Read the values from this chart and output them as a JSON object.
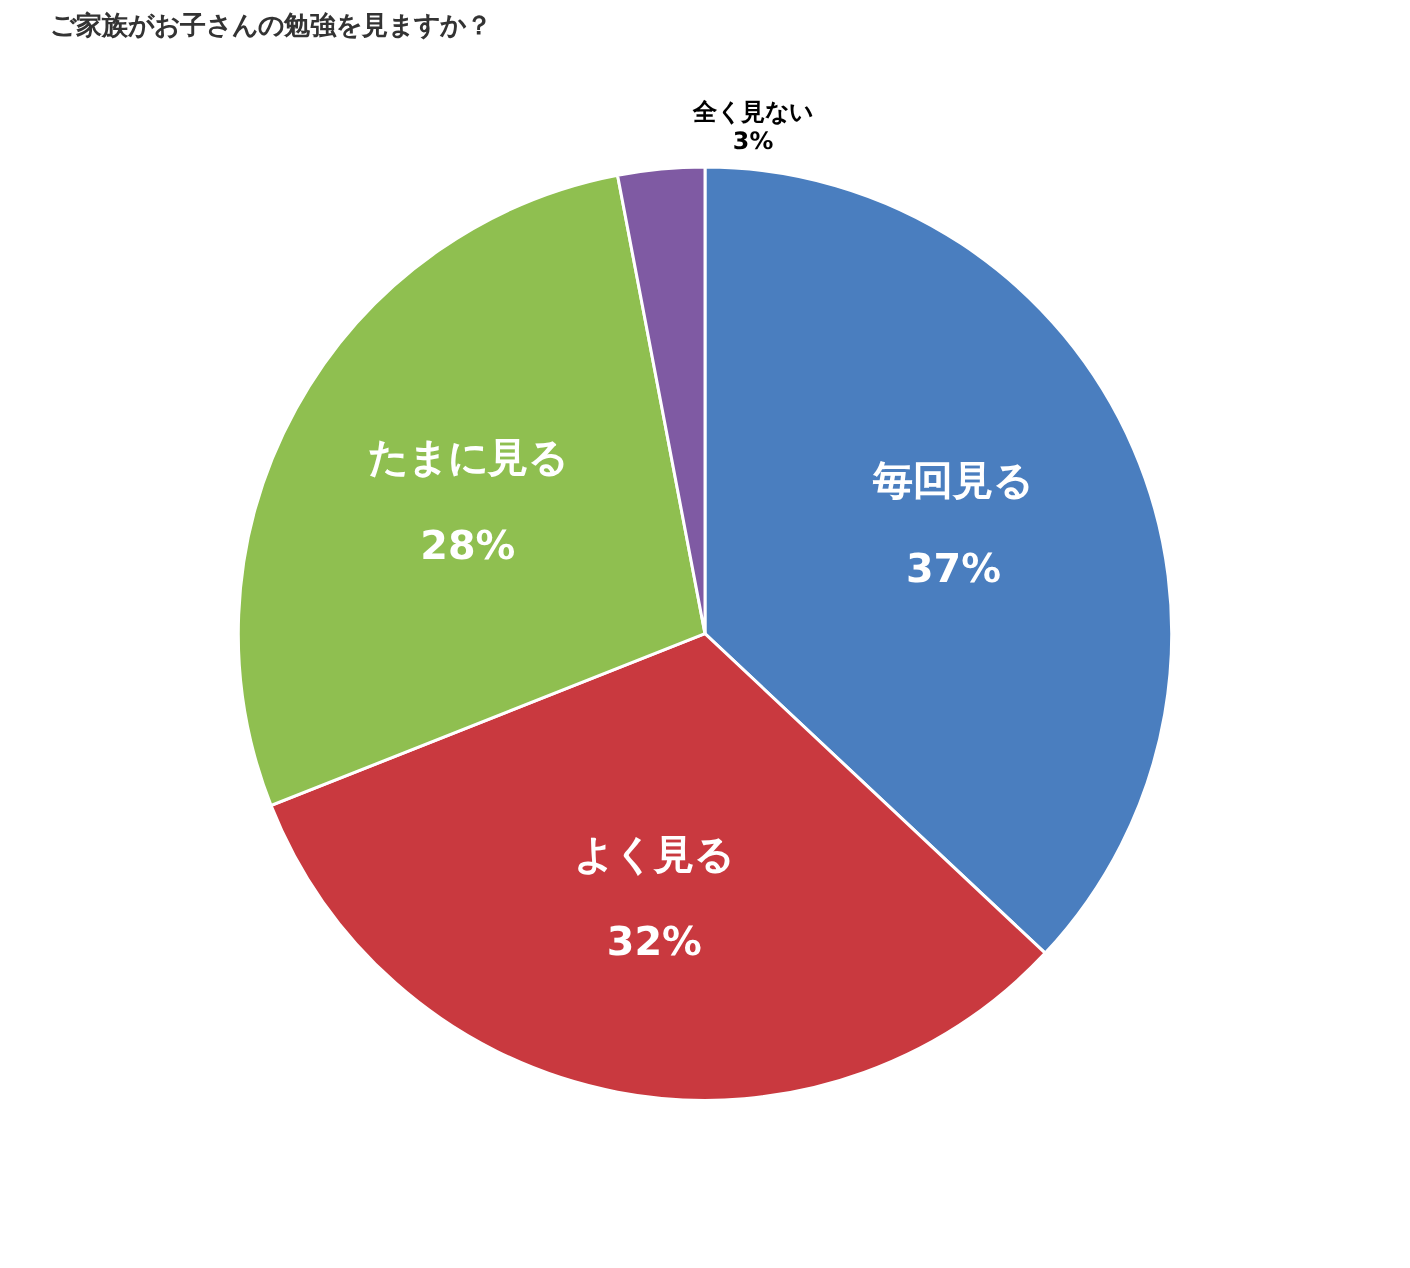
{
  "chart_data": {
    "type": "pie",
    "title": "ご家族がお子さんの勉強を見ますか？",
    "categories": [
      "毎回見る",
      "よく見る",
      "たまに見る",
      "全く見ない"
    ],
    "values": [
      37,
      32,
      28,
      3
    ],
    "value_labels": [
      "37%",
      "32%",
      "28%",
      "3%"
    ],
    "colors": [
      "#4a7ebf",
      "#c9393f",
      "#8fbf50",
      "#7f5aa3"
    ],
    "legend": false
  }
}
